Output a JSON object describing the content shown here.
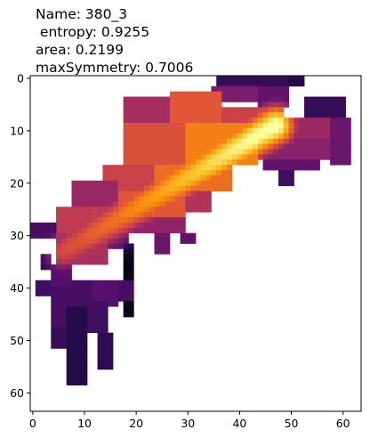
{
  "chart_data": {
    "type": "heatmap",
    "title_lines": [
      "Name: 380_3",
      " entropy: 0.9255",
      "area: 0.2199",
      "maxSymmetry: 0.7006"
    ],
    "x_ticks": [
      0,
      10,
      20,
      30,
      40,
      50,
      60
    ],
    "y_ticks": [
      0,
      10,
      20,
      30,
      40,
      50,
      60
    ],
    "xlim": [
      -0.5,
      63.5
    ],
    "ylim": [
      63.5,
      -0.5
    ],
    "colormap": "inferno",
    "background_value": "none",
    "grid": false,
    "rects": [
      {
        "x0": 36,
        "x1": 50,
        "y0": 0,
        "y1": 2,
        "v": 0.18
      },
      {
        "x0": 50,
        "x1": 53,
        "y0": 0,
        "y1": 2,
        "v": 0.14
      },
      {
        "x0": 35,
        "x1": 44,
        "y0": 2,
        "y1": 5,
        "v": 0.35
      },
      {
        "x0": 44,
        "x1": 50,
        "y0": 2,
        "y1": 6,
        "v": 0.28
      },
      {
        "x0": 53,
        "x1": 61,
        "y0": 4,
        "y1": 8,
        "v": 0.18
      },
      {
        "x0": 18,
        "x1": 27,
        "y0": 4,
        "y1": 9,
        "v": 0.45
      },
      {
        "x0": 27,
        "x1": 37,
        "y0": 3,
        "y1": 9,
        "v": 0.62
      },
      {
        "x0": 37,
        "x1": 49,
        "y0": 6,
        "y1": 12,
        "v": 0.55
      },
      {
        "x0": 49,
        "x1": 58,
        "y0": 8,
        "y1": 12,
        "v": 0.42
      },
      {
        "x0": 58,
        "x1": 62,
        "y0": 8,
        "y1": 17,
        "v": 0.3
      },
      {
        "x0": 44,
        "x1": 58,
        "y0": 12,
        "y1": 16,
        "v": 0.38
      },
      {
        "x0": 45,
        "x1": 56,
        "y0": 16,
        "y1": 18,
        "v": 0.28
      },
      {
        "x0": 48,
        "x1": 51,
        "y0": 18,
        "y1": 21,
        "v": 0.2
      },
      {
        "x0": 18,
        "x1": 30,
        "y0": 9,
        "y1": 17,
        "v": 0.6
      },
      {
        "x0": 30,
        "x1": 44,
        "y0": 9,
        "y1": 17,
        "v": 0.72
      },
      {
        "x0": 14,
        "x1": 24,
        "y0": 17,
        "y1": 22,
        "v": 0.55
      },
      {
        "x0": 24,
        "x1": 39,
        "y0": 17,
        "y1": 22,
        "v": 0.68
      },
      {
        "x0": 8,
        "x1": 17,
        "y0": 20,
        "y1": 25,
        "v": 0.42
      },
      {
        "x0": 17,
        "x1": 30,
        "y0": 22,
        "y1": 27,
        "v": 0.62
      },
      {
        "x0": 30,
        "x1": 35,
        "y0": 22,
        "y1": 26,
        "v": 0.48
      },
      {
        "x0": 5,
        "x1": 17,
        "y0": 25,
        "y1": 30,
        "v": 0.52
      },
      {
        "x0": 17,
        "x1": 30,
        "y0": 27,
        "y1": 30,
        "v": 0.4
      },
      {
        "x0": 0,
        "x1": 5,
        "y0": 28,
        "y1": 31,
        "v": 0.22
      },
      {
        "x0": 5,
        "x1": 15,
        "y0": 30,
        "y1": 36,
        "v": 0.46
      },
      {
        "x0": 15,
        "x1": 19,
        "y0": 30,
        "y1": 33,
        "v": 0.3
      },
      {
        "x0": 24,
        "x1": 27,
        "y0": 30,
        "y1": 34,
        "v": 0.3
      },
      {
        "x0": 29,
        "x1": 32,
        "y0": 30,
        "y1": 32,
        "v": 0.28
      },
      {
        "x0": 2,
        "x1": 4,
        "y0": 34,
        "y1": 37,
        "v": 0.1
      },
      {
        "x0": 18,
        "x1": 20,
        "y0": 32,
        "y1": 46,
        "v": 0.04
      },
      {
        "x0": 4,
        "x1": 8,
        "y0": 36,
        "y1": 40,
        "v": 0.25
      },
      {
        "x0": 1,
        "x1": 4,
        "y0": 39,
        "y1": 42,
        "v": 0.2
      },
      {
        "x0": 4,
        "x1": 8,
        "y0": 40,
        "y1": 48,
        "v": 0.22
      },
      {
        "x0": 8,
        "x1": 12,
        "y0": 39,
        "y1": 44,
        "v": 0.22
      },
      {
        "x0": 12,
        "x1": 17,
        "y0": 39,
        "y1": 44,
        "v": 0.25
      },
      {
        "x0": 17,
        "x1": 20,
        "y0": 39,
        "y1": 43,
        "v": 0.22
      },
      {
        "x0": 4,
        "x1": 7,
        "y0": 48,
        "y1": 52,
        "v": 0.18
      },
      {
        "x0": 7,
        "x1": 11,
        "y0": 44,
        "y1": 59,
        "v": 0.14
      },
      {
        "x0": 11,
        "x1": 15,
        "y0": 43,
        "y1": 49,
        "v": 0.2
      },
      {
        "x0": 13,
        "x1": 16,
        "y0": 49,
        "y1": 56,
        "v": 0.16
      }
    ],
    "hot_ridge": {
      "x_start": 6,
      "y_start": 33,
      "x_end": 47,
      "y_end": 9,
      "peak": 1.0,
      "width": 3.2
    }
  }
}
